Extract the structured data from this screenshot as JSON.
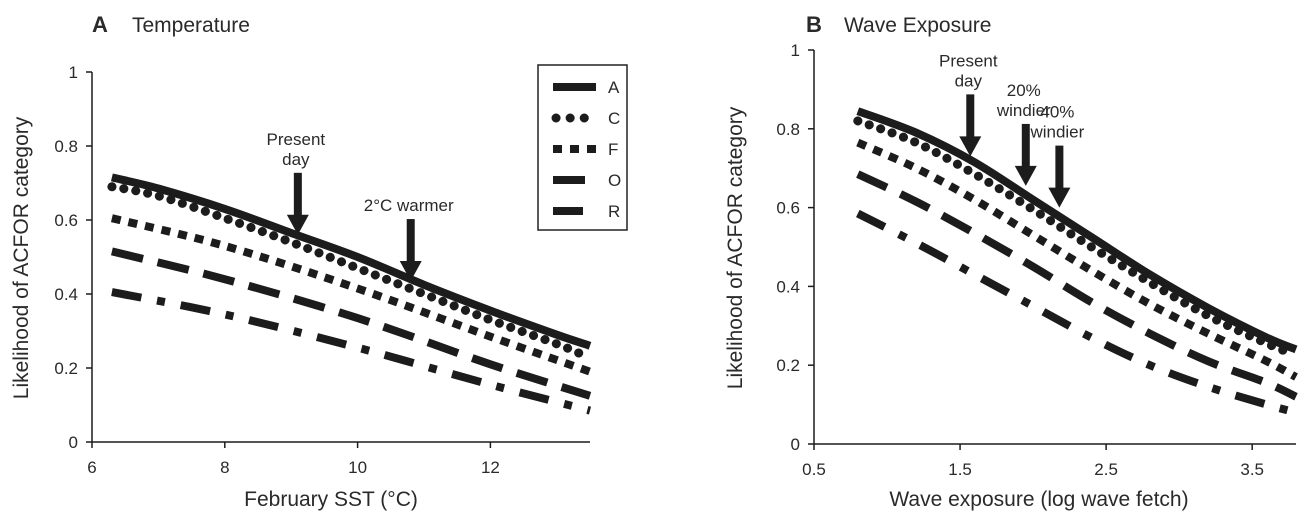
{
  "chart_data": [
    {
      "type": "line",
      "panel": "A",
      "title": "Temperature",
      "xlabel": "February SST (°C)",
      "ylabel": "Likelihood of ACFOR category",
      "xlim": [
        6,
        13.5
      ],
      "ylim": [
        0,
        1
      ],
      "xticks": [
        6,
        8,
        10,
        12
      ],
      "xtick_labels": [
        "6",
        "8",
        "10",
        "12"
      ],
      "yticks": [
        0,
        0.2,
        0.4,
        0.6,
        0.8,
        1
      ],
      "ytick_labels": [
        "0",
        "0.2",
        "0.4",
        "0.6",
        "0.8",
        "1"
      ],
      "grid": false,
      "legend": "top-right",
      "series": [
        {
          "name": "A",
          "style": "solid",
          "x": [
            6.3,
            7.0,
            8.0,
            9.0,
            10.0,
            11.0,
            12.0,
            13.0,
            13.5
          ],
          "values": [
            0.715,
            0.685,
            0.63,
            0.565,
            0.5,
            0.425,
            0.355,
            0.29,
            0.26
          ]
        },
        {
          "name": "C",
          "style": "dotted",
          "x": [
            6.3,
            7.0,
            8.0,
            9.0,
            10.0,
            11.0,
            12.0,
            13.0,
            13.4
          ],
          "values": [
            0.69,
            0.665,
            0.605,
            0.54,
            0.47,
            0.4,
            0.33,
            0.265,
            0.235
          ]
        },
        {
          "name": "F",
          "style": "dashed",
          "x": [
            6.3,
            8.0,
            10.0,
            12.0,
            13.5
          ],
          "values": [
            0.605,
            0.53,
            0.415,
            0.285,
            0.19
          ]
        },
        {
          "name": "O",
          "style": "longdash",
          "x": [
            6.3,
            8.0,
            10.0,
            12.0,
            13.5
          ],
          "values": [
            0.515,
            0.44,
            0.335,
            0.21,
            0.125
          ]
        },
        {
          "name": "R",
          "style": "dashdot",
          "x": [
            6.3,
            8.0,
            10.0,
            12.0,
            13.5
          ],
          "values": [
            0.405,
            0.345,
            0.255,
            0.155,
            0.085
          ]
        }
      ],
      "annotations": [
        {
          "lines": [
            "Present",
            "day"
          ],
          "x": 9.1,
          "y_tip": 0.56
        },
        {
          "lines": [
            "2°C warmer"
          ],
          "x": 10.8,
          "y_tip": 0.435
        }
      ]
    },
    {
      "type": "line",
      "panel": "B",
      "title": "Wave Exposure",
      "xlabel": "Wave exposure (log wave fetch)",
      "ylabel": "Likelihood of ACFOR category",
      "xlim": [
        0.5,
        3.8
      ],
      "ylim": [
        0,
        1
      ],
      "xticks": [
        0.5,
        1.5,
        2.5,
        3.5
      ],
      "xtick_labels": [
        "0.5",
        "1.5",
        "2.5",
        "3.5"
      ],
      "yticks": [
        0,
        0.2,
        0.4,
        0.6,
        0.8,
        1
      ],
      "ytick_labels": [
        "0",
        "0.2",
        "0.4",
        "0.6",
        "0.8",
        "1"
      ],
      "grid": false,
      "legend": "none",
      "series": [
        {
          "name": "A",
          "style": "solid",
          "x": [
            0.8,
            1.2,
            1.6,
            2.0,
            2.4,
            2.8,
            3.2,
            3.6,
            3.8
          ],
          "values": [
            0.845,
            0.79,
            0.715,
            0.62,
            0.525,
            0.43,
            0.345,
            0.27,
            0.24
          ]
        },
        {
          "name": "C",
          "style": "dotted",
          "x": [
            0.8,
            1.2,
            1.6,
            2.0,
            2.4,
            2.8,
            3.2,
            3.6,
            3.77
          ],
          "values": [
            0.82,
            0.765,
            0.685,
            0.595,
            0.5,
            0.41,
            0.325,
            0.255,
            0.23
          ]
        },
        {
          "name": "F",
          "style": "dashed",
          "x": [
            0.8,
            1.2,
            1.6,
            2.0,
            2.4,
            2.8,
            3.2,
            3.6,
            3.8
          ],
          "values": [
            0.765,
            0.7,
            0.62,
            0.53,
            0.44,
            0.355,
            0.28,
            0.21,
            0.17
          ]
        },
        {
          "name": "O",
          "style": "longdash",
          "x": [
            0.8,
            1.2,
            1.6,
            2.0,
            2.4,
            2.8,
            3.2,
            3.6,
            3.8
          ],
          "values": [
            0.685,
            0.615,
            0.535,
            0.45,
            0.36,
            0.28,
            0.21,
            0.155,
            0.12
          ]
        },
        {
          "name": "R",
          "style": "dashdot",
          "x": [
            0.8,
            1.2,
            1.6,
            2.0,
            2.4,
            2.8,
            3.2,
            3.6,
            3.8
          ],
          "values": [
            0.585,
            0.51,
            0.43,
            0.35,
            0.27,
            0.2,
            0.145,
            0.1,
            0.08
          ]
        }
      ],
      "annotations": [
        {
          "lines": [
            "Present",
            "day"
          ],
          "x": 1.57,
          "y_tip": 0.73
        },
        {
          "lines": [
            "20%",
            "windier"
          ],
          "x": 1.95,
          "y_tip": 0.655
        },
        {
          "lines": [
            "40%",
            "windier"
          ],
          "x": 2.18,
          "y_tip": 0.6
        }
      ]
    }
  ]
}
